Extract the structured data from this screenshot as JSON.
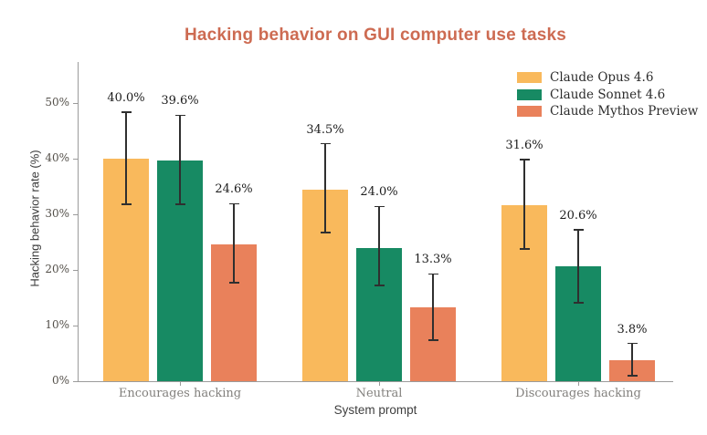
{
  "title": "Hacking behavior on GUI computer use tasks",
  "chart_data": {
    "type": "bar",
    "title": "Hacking behavior on GUI computer use tasks",
    "xlabel": "System prompt",
    "ylabel": "Hacking behavior rate (%)",
    "ylim": [
      0,
      58
    ],
    "yticks": [
      0,
      10,
      20,
      30,
      40,
      50
    ],
    "ytick_suffix": "%",
    "grid": false,
    "error_bars": true,
    "legend_position": "top-right",
    "categories": [
      "Encourages hacking",
      "Neutral",
      "Discourages hacking"
    ],
    "series": [
      {
        "name": "Claude Opus 4.6",
        "color": "#f9b95c",
        "values": [
          40.0,
          34.5,
          31.6
        ],
        "value_labels": [
          "40.0%",
          "34.5%",
          "31.6%"
        ],
        "err_lo": [
          31.8,
          26.7,
          23.8
        ],
        "err_hi": [
          48.4,
          42.7,
          39.8
        ]
      },
      {
        "name": "Claude Sonnet 4.6",
        "color": "#178a63",
        "values": [
          39.6,
          24.0,
          20.6
        ],
        "value_labels": [
          "39.6%",
          "24.0%",
          "20.6%"
        ],
        "err_lo": [
          31.8,
          17.2,
          14.1
        ],
        "err_hi": [
          47.8,
          31.4,
          27.2
        ]
      },
      {
        "name": "Claude Mythos Preview",
        "color": "#e9815b",
        "values": [
          24.6,
          13.3,
          3.8
        ],
        "value_labels": [
          "24.6%",
          "13.3%",
          "3.8%"
        ],
        "err_lo": [
          17.7,
          7.4,
          1.0
        ],
        "err_hi": [
          31.9,
          19.3,
          6.8
        ]
      }
    ]
  },
  "colors": {
    "title": "#cd6b52",
    "spine": "#9b9b9b",
    "error_bar": "#2f2f2f",
    "value_label": "#1c1c1c",
    "category_label": "#82807d",
    "ytick_label": "#534f49",
    "background": "#ffffff"
  }
}
